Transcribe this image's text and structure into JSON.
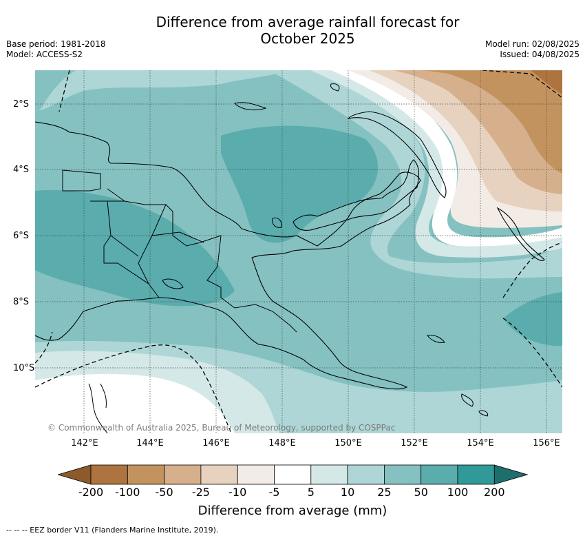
{
  "title": "Difference from average rainfall forecast for\nOctober 2025",
  "title_line1": "Difference from average rainfall forecast for",
  "title_line2": "October 2025",
  "base_period": "Base period: 1981-2018",
  "model": "Model: ACCESS-S2",
  "model_run": "Model run: 02/08/2025",
  "issued": "Issued: 04/08/2025",
  "lat_labels": [
    "2°S",
    "4°S",
    "6°S",
    "8°S",
    "10°S"
  ],
  "lon_labels": [
    "142°E",
    "144°E",
    "146°E",
    "148°E",
    "150°E",
    "152°E",
    "154°E",
    "156°E"
  ],
  "copyright": "© Commonwealth of Australia 2025, Bureau of Meteorology, supported by COSPPac",
  "colorbar": {
    "ticks": [
      "-200",
      "-100",
      "-50",
      "-25",
      "-10",
      "-5",
      "5",
      "10",
      "25",
      "50",
      "100",
      "200"
    ],
    "colors": [
      "#8c5a2b",
      "#ad7440",
      "#c3935f",
      "#d6b08c",
      "#e6d2bf",
      "#f3ece6",
      "#ffffff",
      "#d4e8e7",
      "#aed6d6",
      "#85c1c1",
      "#5aacad",
      "#319a98",
      "#1e6e6c"
    ],
    "label": "Difference from average (mm)"
  },
  "eez_note": "-- -- -- EEZ border V11 (Flanders Marine Institute, 2019)."
}
